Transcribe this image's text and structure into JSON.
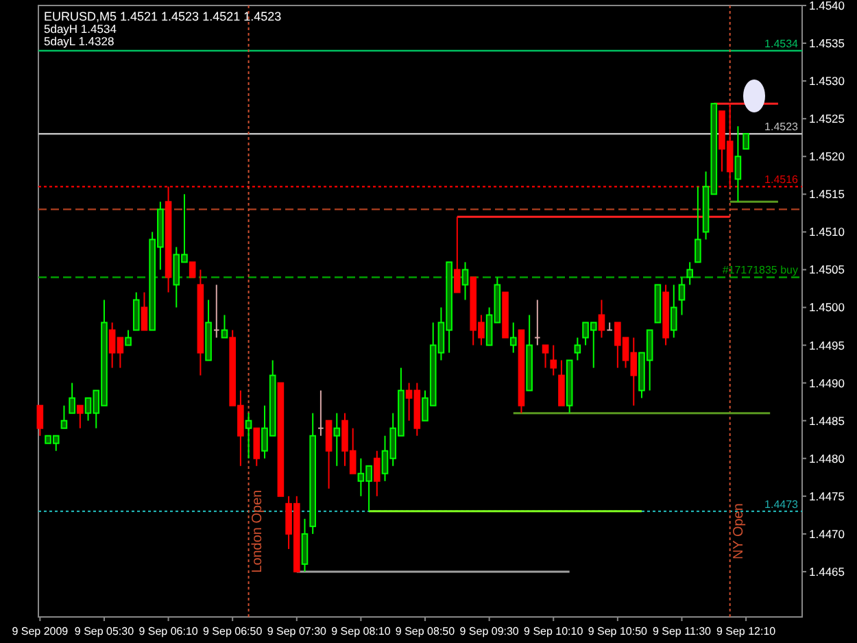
{
  "chart_data": {
    "type": "candlestick",
    "title": "EURUSD,M5  1.4521 1.4523 1.4521 1.4523",
    "annotations": [
      "5dayH 1.4534",
      "5dayL 1.4328"
    ],
    "x": [
      "2009-09-09T04:50",
      "2009-09-09T04:55",
      "2009-09-09T05:00",
      "2009-09-09T05:05",
      "2009-09-09T05:10",
      "2009-09-09T05:15",
      "2009-09-09T05:20",
      "2009-09-09T05:25",
      "2009-09-09T05:30",
      "2009-09-09T05:35",
      "2009-09-09T05:40",
      "2009-09-09T05:45",
      "2009-09-09T05:50",
      "2009-09-09T05:55",
      "2009-09-09T06:00",
      "2009-09-09T06:05",
      "2009-09-09T06:10",
      "2009-09-09T06:15",
      "2009-09-09T06:20",
      "2009-09-09T06:25",
      "2009-09-09T06:30",
      "2009-09-09T06:35",
      "2009-09-09T06:40",
      "2009-09-09T06:45",
      "2009-09-09T06:50",
      "2009-09-09T06:55",
      "2009-09-09T07:00",
      "2009-09-09T07:05",
      "2009-09-09T07:10",
      "2009-09-09T07:15",
      "2009-09-09T07:20",
      "2009-09-09T07:25",
      "2009-09-09T07:30",
      "2009-09-09T07:35",
      "2009-09-09T07:40",
      "2009-09-09T07:45",
      "2009-09-09T07:50",
      "2009-09-09T07:55",
      "2009-09-09T08:00",
      "2009-09-09T08:05",
      "2009-09-09T08:10",
      "2009-09-09T08:15",
      "2009-09-09T08:20",
      "2009-09-09T08:25",
      "2009-09-09T08:30",
      "2009-09-09T08:35",
      "2009-09-09T08:40",
      "2009-09-09T08:45",
      "2009-09-09T08:50",
      "2009-09-09T08:55",
      "2009-09-09T09:00",
      "2009-09-09T09:05",
      "2009-09-09T09:10",
      "2009-09-09T09:15",
      "2009-09-09T09:20",
      "2009-09-09T09:25",
      "2009-09-09T09:30",
      "2009-09-09T09:35",
      "2009-09-09T09:40",
      "2009-09-09T09:45",
      "2009-09-09T09:50",
      "2009-09-09T09:55",
      "2009-09-09T10:00",
      "2009-09-09T10:05",
      "2009-09-09T10:10",
      "2009-09-09T10:15",
      "2009-09-09T10:20",
      "2009-09-09T10:25",
      "2009-09-09T10:30",
      "2009-09-09T10:35",
      "2009-09-09T10:40",
      "2009-09-09T10:45",
      "2009-09-09T10:50",
      "2009-09-09T10:55",
      "2009-09-09T11:00",
      "2009-09-09T11:05",
      "2009-09-09T11:10",
      "2009-09-09T11:15",
      "2009-09-09T11:20",
      "2009-09-09T11:25",
      "2009-09-09T11:30",
      "2009-09-09T11:35",
      "2009-09-09T11:40",
      "2009-09-09T11:45",
      "2009-09-09T11:50",
      "2009-09-09T11:55",
      "2009-09-09T12:00",
      "2009-09-09T12:05",
      "2009-09-09T12:10"
    ],
    "ohlc": [
      [
        1.4487,
        1.4487,
        1.4483,
        1.4484
      ],
      [
        1.4482,
        1.4483,
        1.4482,
        1.4483
      ],
      [
        1.4482,
        1.4483,
        1.4481,
        1.4483
      ],
      [
        1.4484,
        1.4487,
        1.4484,
        1.4485
      ],
      [
        1.4486,
        1.449,
        1.4486,
        1.4488
      ],
      [
        1.4487,
        1.4487,
        1.4484,
        1.4486
      ],
      [
        1.4486,
        1.4488,
        1.4485,
        1.4488
      ],
      [
        1.4486,
        1.4489,
        1.4484,
        1.4489
      ],
      [
        1.4487,
        1.4501,
        1.4487,
        1.4498
      ],
      [
        1.4497,
        1.4498,
        1.4492,
        1.4494
      ],
      [
        1.4496,
        1.4496,
        1.4492,
        1.4494
      ],
      [
        1.4495,
        1.4497,
        1.4495,
        1.4496
      ],
      [
        1.4497,
        1.4502,
        1.4497,
        1.4501
      ],
      [
        1.45,
        1.4502,
        1.4497,
        1.4497
      ],
      [
        1.4497,
        1.451,
        1.4497,
        1.4509
      ],
      [
        1.4508,
        1.4514,
        1.4505,
        1.4513
      ],
      [
        1.4514,
        1.4516,
        1.4502,
        1.4504
      ],
      [
        1.4503,
        1.4508,
        1.45,
        1.4507
      ],
      [
        1.4506,
        1.4515,
        1.4506,
        1.4507
      ],
      [
        1.4506,
        1.4506,
        1.4504,
        1.4504
      ],
      [
        1.4503,
        1.4505,
        1.4491,
        1.4494
      ],
      [
        1.4493,
        1.4501,
        1.4493,
        1.4498
      ],
      [
        1.4497,
        1.4503,
        1.4496,
        1.4497
      ],
      [
        1.4496,
        1.4499,
        1.4496,
        1.4497
      ],
      [
        1.4496,
        1.4497,
        1.4487,
        1.4487
      ],
      [
        1.4487,
        1.4489,
        1.4479,
        1.4483
      ],
      [
        1.4484,
        1.4486,
        1.448,
        1.4485
      ],
      [
        1.4484,
        1.4484,
        1.4479,
        1.448
      ],
      [
        1.4481,
        1.4487,
        1.448,
        1.4484
      ],
      [
        1.4483,
        1.4493,
        1.4483,
        1.4491
      ],
      [
        1.449,
        1.449,
        1.4475,
        1.4475
      ],
      [
        1.4474,
        1.4475,
        1.4468,
        1.447
      ],
      [
        1.4474,
        1.4475,
        1.4465,
        1.4465
      ],
      [
        1.4466,
        1.4472,
        1.4465,
        1.447
      ],
      [
        1.4471,
        1.4486,
        1.447,
        1.4483
      ],
      [
        1.4484,
        1.4489,
        1.4483,
        1.4484
      ],
      [
        1.4485,
        1.4485,
        1.4476,
        1.4481
      ],
      [
        1.4483,
        1.4486,
        1.4479,
        1.4484
      ],
      [
        1.4485,
        1.4486,
        1.4479,
        1.4481
      ],
      [
        1.4481,
        1.4484,
        1.4478,
        1.4478
      ],
      [
        1.4477,
        1.448,
        1.4475,
        1.4478
      ],
      [
        1.4477,
        1.4479,
        1.4473,
        1.4479
      ],
      [
        1.448,
        1.4481,
        1.4475,
        1.4477
      ],
      [
        1.4478,
        1.4483,
        1.4477,
        1.4481
      ],
      [
        1.448,
        1.4486,
        1.4479,
        1.4484
      ],
      [
        1.4483,
        1.4492,
        1.4483,
        1.4489
      ],
      [
        1.4489,
        1.449,
        1.4485,
        1.4488
      ],
      [
        1.4489,
        1.449,
        1.4483,
        1.4484
      ],
      [
        1.4485,
        1.4489,
        1.4485,
        1.4488
      ],
      [
        1.4487,
        1.4498,
        1.4487,
        1.4495
      ],
      [
        1.4494,
        1.45,
        1.4493,
        1.4498
      ],
      [
        1.4497,
        1.4506,
        1.4494,
        1.4506
      ],
      [
        1.4505,
        1.4512,
        1.4502,
        1.4502
      ],
      [
        1.4503,
        1.4506,
        1.4501,
        1.4505
      ],
      [
        1.4504,
        1.4504,
        1.4495,
        1.4497
      ],
      [
        1.4498,
        1.4499,
        1.4495,
        1.4496
      ],
      [
        1.4495,
        1.45,
        1.4495,
        1.4499
      ],
      [
        1.4498,
        1.4504,
        1.4498,
        1.4503
      ],
      [
        1.4502,
        1.4502,
        1.4496,
        1.4496
      ],
      [
        1.4495,
        1.4498,
        1.4494,
        1.4496
      ],
      [
        1.4497,
        1.4497,
        1.4486,
        1.4487
      ],
      [
        1.4489,
        1.4499,
        1.4489,
        1.4495
      ],
      [
        1.4496,
        1.4501,
        1.4495,
        1.4496
      ],
      [
        1.4495,
        1.4495,
        1.4492,
        1.4494
      ],
      [
        1.4493,
        1.4495,
        1.4491,
        1.4492
      ],
      [
        1.4491,
        1.4493,
        1.4487,
        1.4487
      ],
      [
        1.4487,
        1.4493,
        1.4486,
        1.4493
      ],
      [
        1.4494,
        1.4496,
        1.4493,
        1.4495
      ],
      [
        1.4496,
        1.4498,
        1.4495,
        1.4498
      ],
      [
        1.4497,
        1.4498,
        1.4492,
        1.4498
      ],
      [
        1.4499,
        1.4501,
        1.4496,
        1.4497
      ],
      [
        1.4497,
        1.4498,
        1.4497,
        1.4497
      ],
      [
        1.4498,
        1.4498,
        1.4492,
        1.4495
      ],
      [
        1.4496,
        1.4496,
        1.4492,
        1.4493
      ],
      [
        1.4494,
        1.4496,
        1.4487,
        1.4491
      ],
      [
        1.4489,
        1.4494,
        1.4488,
        1.4494
      ],
      [
        1.4493,
        1.4497,
        1.4489,
        1.4497
      ],
      [
        1.4498,
        1.4503,
        1.4498,
        1.4503
      ],
      [
        1.4502,
        1.4503,
        1.4495,
        1.4496
      ],
      [
        1.4497,
        1.4503,
        1.4496,
        1.45
      ],
      [
        1.4501,
        1.4504,
        1.4499,
        1.4503
      ],
      [
        1.4504,
        1.4506,
        1.4503,
        1.4505
      ],
      [
        1.4506,
        1.4516,
        1.4506,
        1.4509
      ],
      [
        1.451,
        1.4518,
        1.4509,
        1.4516
      ],
      [
        1.4515,
        1.4527,
        1.4515,
        1.4527
      ],
      [
        1.4526,
        1.4526,
        1.4518,
        1.4521
      ],
      [
        1.4522,
        1.4527,
        1.4516,
        1.4518
      ],
      [
        1.4517,
        1.4524,
        1.4514,
        1.452
      ],
      [
        1.4521,
        1.4523,
        1.4521,
        1.4523
      ]
    ],
    "colors": [
      "#ff0000",
      "#00ff00",
      "#00ff00",
      "#00ff00",
      "#00ff00",
      "#ff0000",
      "#00ff00",
      "#00ff00",
      "#00ff00",
      "#ff0000",
      "#ff0000",
      "#00ff00",
      "#00ff00",
      "#ff0000",
      "#00ff00",
      "#00ff00",
      "#ff0000",
      "#00ff00",
      "#00ff00",
      "#ff0000",
      "#ff0000",
      "#00ff00",
      "#d8a8a8",
      "#00ff00",
      "#ff0000",
      "#ff0000",
      "#00ff00",
      "#ff0000",
      "#00ff00",
      "#00ff00",
      "#ff0000",
      "#ff0000",
      "#ff0000",
      "#00ff00",
      "#00ff00",
      "#d8a8a8",
      "#ff0000",
      "#00ff00",
      "#ff0000",
      "#ff0000",
      "#00ff00",
      "#00ff00",
      "#ff0000",
      "#00ff00",
      "#00ff00",
      "#00ff00",
      "#ff0000",
      "#ff0000",
      "#00ff00",
      "#00ff00",
      "#00ff00",
      "#00ff00",
      "#ff0000",
      "#00ff00",
      "#ff0000",
      "#ff0000",
      "#00ff00",
      "#00ff00",
      "#ff0000",
      "#00ff00",
      "#ff0000",
      "#00ff00",
      "#d8a8a8",
      "#ff0000",
      "#ff0000",
      "#ff0000",
      "#00ff00",
      "#00ff00",
      "#00ff00",
      "#00ff00",
      "#ff0000",
      "#d8a8a8",
      "#ff0000",
      "#ff0000",
      "#ff0000",
      "#00ff00",
      "#00ff00",
      "#00ff00",
      "#ff0000",
      "#00ff00",
      "#00ff00",
      "#00ff00",
      "#00ff00",
      "#00ff00",
      "#00ff00",
      "#ff0000",
      "#ff0000",
      "#00ff00",
      "#00ff00"
    ],
    "series": [
      {
        "type": "line",
        "color": "#ff2020",
        "x": [
          "2009-09-09T09:10",
          "2009-09-09T12:00"
        ],
        "values": [
          1.4512,
          1.4512
        ]
      },
      {
        "type": "line",
        "color": "#ff2020",
        "x": [
          "2009-09-09T11:50",
          "2009-09-09T12:30"
        ],
        "values": [
          1.4527,
          1.4527
        ]
      },
      {
        "type": "line",
        "color": "#5a9a20",
        "x": [
          "2009-09-09T09:45",
          "2009-09-09T12:25"
        ],
        "values": [
          1.4486,
          1.4486
        ]
      },
      {
        "type": "line",
        "color": "#5a9a20",
        "x": [
          "2009-09-09T12:00",
          "2009-09-09T12:30"
        ],
        "values": [
          1.4514,
          1.4514
        ]
      },
      {
        "type": "line",
        "color": "#80ff20",
        "x": [
          "2009-09-09T08:15",
          "2009-09-09T11:05"
        ],
        "values": [
          1.4473,
          1.4473
        ]
      },
      {
        "type": "line",
        "color": "#a0a0a0",
        "x": [
          "2009-09-09T07:30",
          "2009-09-09T10:20"
        ],
        "values": [
          1.4465,
          1.4465
        ]
      }
    ],
    "ref_lines": [
      {
        "axis": "y",
        "value": 1.4534,
        "label": "1.4534",
        "color": "#00c060",
        "line_style": "solid"
      },
      {
        "axis": "y",
        "value": 1.4523,
        "label": "1.4523",
        "color": "#c0c0c0",
        "line_style": "solid"
      },
      {
        "axis": "y",
        "value": 1.4516,
        "label": "1.4516",
        "color": "#e00000",
        "line_style": "dotted"
      },
      {
        "axis": "y",
        "value": 1.4513,
        "color": "#b04020",
        "line_style": "dashed"
      },
      {
        "axis": "y",
        "value": 1.4504,
        "label": "#17171835 buy",
        "color": "#00a000",
        "line_style": "dashed"
      },
      {
        "axis": "y",
        "value": 1.4473,
        "label": "1.4473",
        "color": "#20b0b0",
        "line_style": "dotted"
      },
      {
        "axis": "x",
        "value": "2009-09-09T07:00",
        "label": "London Open",
        "color": "#d05030",
        "line_style": "dotted"
      },
      {
        "axis": "x",
        "value": "2009-09-09T12:00",
        "label": "NY Open",
        "color": "#d05030",
        "line_style": "dotted"
      }
    ],
    "xlim": [
      "2009-09-09T04:49",
      "2009-09-09T12:45"
    ],
    "xticks": [
      {
        "value": "2009-09-09T04:50",
        "label": "9 Sep 2009"
      },
      {
        "value": "2009-09-09T05:30",
        "label": "9 Sep 05:30"
      },
      {
        "value": "2009-09-09T06:10",
        "label": "9 Sep 06:10"
      },
      {
        "value": "2009-09-09T06:50",
        "label": "9 Sep 06:50"
      },
      {
        "value": "2009-09-09T07:30",
        "label": "9 Sep 07:30"
      },
      {
        "value": "2009-09-09T08:10",
        "label": "9 Sep 08:10"
      },
      {
        "value": "2009-09-09T08:50",
        "label": "9 Sep 08:50"
      },
      {
        "value": "2009-09-09T09:30",
        "label": "9 Sep 09:30"
      },
      {
        "value": "2009-09-09T10:10",
        "label": "9 Sep 10:10"
      },
      {
        "value": "2009-09-09T10:50",
        "label": "9 Sep 10:50"
      },
      {
        "value": "2009-09-09T11:30",
        "label": "9 Sep 11:30"
      },
      {
        "value": "2009-09-09T12:10",
        "label": "9 Sep 12:10"
      }
    ],
    "ylim": [
      1.4459,
      1.454
    ],
    "yticks": [
      {
        "value": 1.4465,
        "label": "1.4465"
      },
      {
        "value": 1.447,
        "label": "1.4470"
      },
      {
        "value": 1.4475,
        "label": "1.4475"
      },
      {
        "value": 1.448,
        "label": "1.4480"
      },
      {
        "value": 1.4485,
        "label": "1.4485"
      },
      {
        "value": 1.449,
        "label": "1.4490"
      },
      {
        "value": 1.4495,
        "label": "1.4495"
      },
      {
        "value": 1.45,
        "label": "1.4500"
      },
      {
        "value": 1.4505,
        "label": "1.4505"
      },
      {
        "value": 1.451,
        "label": "1.4510"
      },
      {
        "value": 1.4515,
        "label": "1.4515"
      },
      {
        "value": 1.452,
        "label": "1.4520"
      },
      {
        "value": 1.4525,
        "label": "1.4525"
      },
      {
        "value": 1.453,
        "label": "1.4530"
      },
      {
        "value": 1.4535,
        "label": "1.4535"
      },
      {
        "value": 1.454,
        "label": "1.4540"
      }
    ]
  }
}
